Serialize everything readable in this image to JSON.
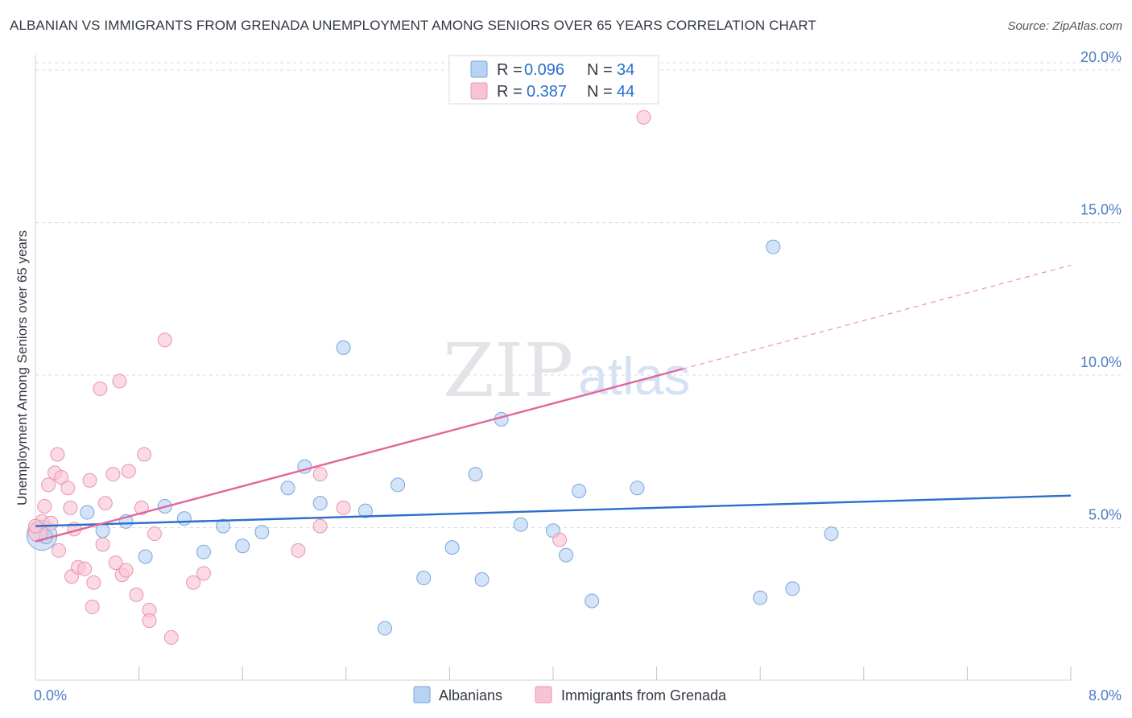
{
  "header": {
    "title": "ALBANIAN VS IMMIGRANTS FROM GRENADA UNEMPLOYMENT AMONG SENIORS OVER 65 YEARS CORRELATION CHART",
    "source": "Source: ZipAtlas.com"
  },
  "watermark": {
    "zip": "ZIP",
    "atlas": "atlas"
  },
  "colors": {
    "blue_fill": "#b8d2f3",
    "blue_stroke": "#7aa6db",
    "blue_line": "#2a6fcc",
    "pink_fill": "#f8c4d4",
    "pink_stroke": "#e995b0",
    "pink_line": "#e0679a",
    "tick_text": "#4a7cc4",
    "grid": "#d8dbe0"
  },
  "legend": {
    "rows": [
      {
        "r_label": "R =",
        "r_value": "0.096",
        "n_label": "N =",
        "n_value": "34",
        "series": "Albanians"
      },
      {
        "r_label": "R =",
        "r_value": "0.387",
        "n_label": "N =",
        "n_value": "44",
        "series": "Immigrants from Grenada"
      }
    ]
  },
  "chart_data": {
    "type": "scatter",
    "title": "ALBANIAN VS IMMIGRANTS FROM GRENADA UNEMPLOYMENT AMONG SENIORS OVER 65 YEARS CORRELATION CHART",
    "xlabel": "",
    "ylabel": "Unemployment Among Seniors over 65 years",
    "xlim": [
      0,
      8
    ],
    "ylim": [
      0,
      20.5
    ],
    "x_tick_labels": [
      {
        "value": 0,
        "label": "0.0%"
      },
      {
        "value": 8,
        "label": "8.0%"
      }
    ],
    "y_ticks": [
      {
        "value": 5,
        "label": "5.0%"
      },
      {
        "value": 10,
        "label": "10.0%"
      },
      {
        "value": 15,
        "label": "15.0%"
      },
      {
        "value": 20,
        "label": "20.0%"
      }
    ],
    "x_minor_ticks": [
      0.8,
      1.6,
      2.4,
      3.2,
      4.0,
      4.8,
      5.6,
      6.4,
      7.2,
      8.0
    ],
    "series": [
      {
        "name": "Albanians",
        "color": "blue",
        "points": [
          [
            0.05,
            4.75,
            2.2
          ],
          [
            0.4,
            5.5,
            1
          ],
          [
            0.52,
            4.9,
            1
          ],
          [
            0.7,
            5.2,
            1
          ],
          [
            0.85,
            4.05,
            1
          ],
          [
            1.0,
            5.7,
            1
          ],
          [
            1.15,
            5.3,
            1
          ],
          [
            1.3,
            4.2,
            1
          ],
          [
            1.45,
            5.05,
            1
          ],
          [
            1.6,
            4.4,
            1
          ],
          [
            1.75,
            4.85,
            1
          ],
          [
            1.95,
            6.3,
            1
          ],
          [
            2.08,
            7.0,
            1
          ],
          [
            2.2,
            5.8,
            1
          ],
          [
            2.38,
            10.9,
            1
          ],
          [
            2.55,
            5.55,
            1
          ],
          [
            2.7,
            1.7,
            1
          ],
          [
            2.8,
            6.4,
            1
          ],
          [
            3.0,
            3.35,
            1
          ],
          [
            3.22,
            4.35,
            1
          ],
          [
            3.4,
            6.75,
            1
          ],
          [
            3.45,
            3.3,
            1
          ],
          [
            3.6,
            8.55,
            1
          ],
          [
            3.75,
            5.1,
            1
          ],
          [
            4.0,
            4.9,
            1
          ],
          [
            4.1,
            4.1,
            1
          ],
          [
            4.2,
            6.2,
            1
          ],
          [
            4.3,
            2.6,
            1
          ],
          [
            4.65,
            6.3,
            1
          ],
          [
            5.6,
            2.7,
            1
          ],
          [
            5.7,
            14.2,
            1
          ],
          [
            5.85,
            3.0,
            1
          ],
          [
            6.15,
            4.8,
            1
          ],
          [
            0.08,
            4.7,
            1
          ]
        ],
        "trend": {
          "x0": 0,
          "y0": 5.05,
          "x1": 8,
          "y1": 6.05
        }
      },
      {
        "name": "Immigrants from Grenada",
        "color": "pink",
        "points": [
          [
            0.02,
            4.85,
            1.4
          ],
          [
            0.05,
            5.2,
            1
          ],
          [
            0.07,
            5.7,
            1
          ],
          [
            0.1,
            6.4,
            1
          ],
          [
            0.12,
            5.15,
            1
          ],
          [
            0.15,
            6.8,
            1
          ],
          [
            0.17,
            7.4,
            1
          ],
          [
            0.18,
            4.25,
            1
          ],
          [
            0.2,
            6.65,
            1
          ],
          [
            0.25,
            6.3,
            1
          ],
          [
            0.27,
            5.65,
            1
          ],
          [
            0.28,
            3.4,
            1
          ],
          [
            0.3,
            4.95,
            1
          ],
          [
            0.33,
            3.7,
            1
          ],
          [
            0.38,
            3.65,
            1
          ],
          [
            0.42,
            6.55,
            1
          ],
          [
            0.44,
            2.4,
            1
          ],
          [
            0.45,
            3.2,
            1
          ],
          [
            0.5,
            9.55,
            1
          ],
          [
            0.52,
            4.45,
            1
          ],
          [
            0.54,
            5.8,
            1
          ],
          [
            0.6,
            6.75,
            1
          ],
          [
            0.62,
            3.85,
            1
          ],
          [
            0.65,
            9.8,
            1
          ],
          [
            0.67,
            3.45,
            1
          ],
          [
            0.7,
            3.6,
            1
          ],
          [
            0.72,
            6.85,
            1
          ],
          [
            0.78,
            2.8,
            1
          ],
          [
            0.82,
            5.65,
            1
          ],
          [
            0.84,
            7.4,
            1
          ],
          [
            0.88,
            2.3,
            1
          ],
          [
            0.88,
            1.95,
            1
          ],
          [
            0.92,
            4.8,
            1
          ],
          [
            1.0,
            11.15,
            1
          ],
          [
            1.05,
            1.4,
            1
          ],
          [
            1.22,
            3.2,
            1
          ],
          [
            1.3,
            3.5,
            1
          ],
          [
            2.03,
            4.25,
            1
          ],
          [
            2.2,
            6.75,
            1
          ],
          [
            2.2,
            5.05,
            1
          ],
          [
            2.38,
            5.65,
            1
          ],
          [
            4.05,
            4.6,
            1
          ],
          [
            4.7,
            18.45,
            1
          ],
          [
            0.0,
            5.05,
            1
          ]
        ],
        "trend": {
          "x0": 0,
          "y0": 4.55,
          "x1": 5.0,
          "y1": 10.2
        },
        "trend_dashed": {
          "x0": 5.0,
          "y0": 10.2,
          "x1": 8.0,
          "y1": 13.6
        }
      }
    ]
  },
  "bottom_legend": [
    {
      "label": "Albanians",
      "color": "blue"
    },
    {
      "label": "Immigrants from Grenada",
      "color": "pink"
    }
  ]
}
